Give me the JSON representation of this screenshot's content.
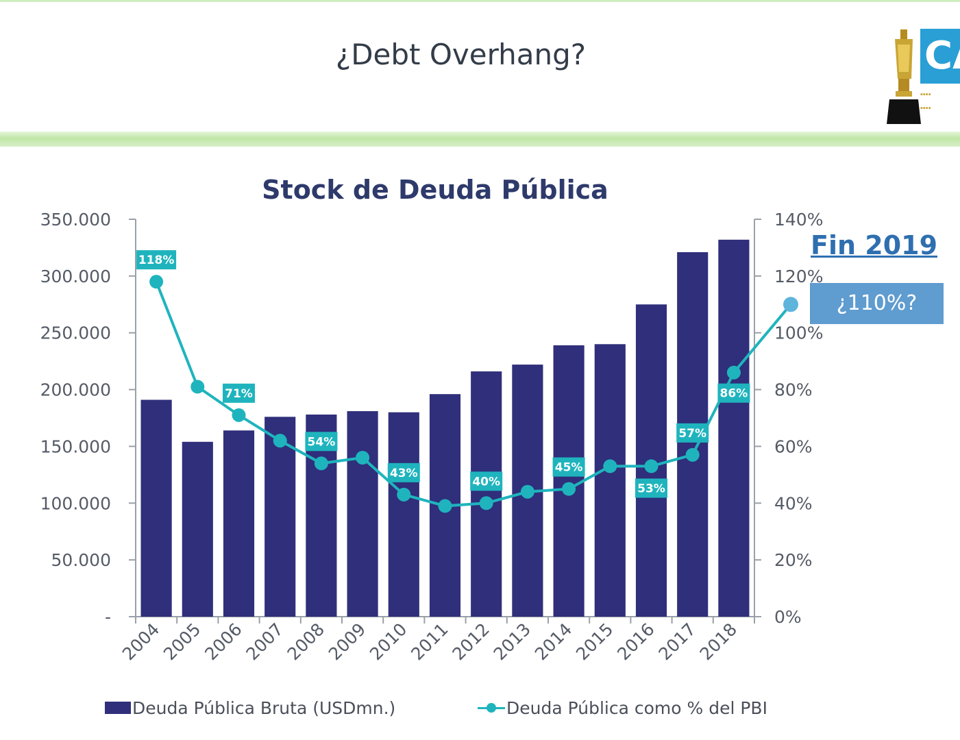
{
  "slide": {
    "title": "¿Debt Overhang?",
    "logo_text": "CA"
  },
  "chart_data": {
    "type": "bar",
    "title": "Stock de Deuda Pública",
    "categories": [
      "2004",
      "2005",
      "2006",
      "2007",
      "2008",
      "2009",
      "2010",
      "2011",
      "2012",
      "2013",
      "2014",
      "2015",
      "2016",
      "2017",
      "2018"
    ],
    "series": [
      {
        "name": "Deuda Pública Bruta (USDmn.)",
        "type": "bar",
        "axis": "left",
        "color": "#2f2f7b",
        "values": [
          191000,
          154000,
          164000,
          176000,
          178000,
          181000,
          180000,
          196000,
          216000,
          222000,
          239000,
          240000,
          275000,
          321000,
          332000
        ]
      },
      {
        "name": "Deuda Pública como % del PBI",
        "type": "line",
        "axis": "right",
        "color": "#1fb4bd",
        "values": [
          118,
          81,
          71,
          62,
          54,
          56,
          43,
          39,
          40,
          44,
          45,
          53,
          53,
          57,
          86
        ],
        "data_labels": [
          "118%",
          null,
          "71%",
          null,
          "54%",
          null,
          "43%",
          null,
          "40%",
          null,
          "45%",
          null,
          "53%",
          "57%",
          "86%"
        ]
      }
    ],
    "y_left": {
      "ylim": [
        0,
        350000
      ],
      "ticks": [
        "-",
        "50.000",
        "100.000",
        "150.000",
        "200.000",
        "250.000",
        "300.000",
        "350.000"
      ]
    },
    "y_right": {
      "ylim": [
        0,
        140
      ],
      "ticks": [
        "0%",
        "20%",
        "40%",
        "60%",
        "80%",
        "100%",
        "120%",
        "140%"
      ]
    },
    "grid": false,
    "legend_position": "bottom",
    "annotation": {
      "title": "Fin 2019",
      "callout": "¿110%?",
      "value": 110
    }
  }
}
